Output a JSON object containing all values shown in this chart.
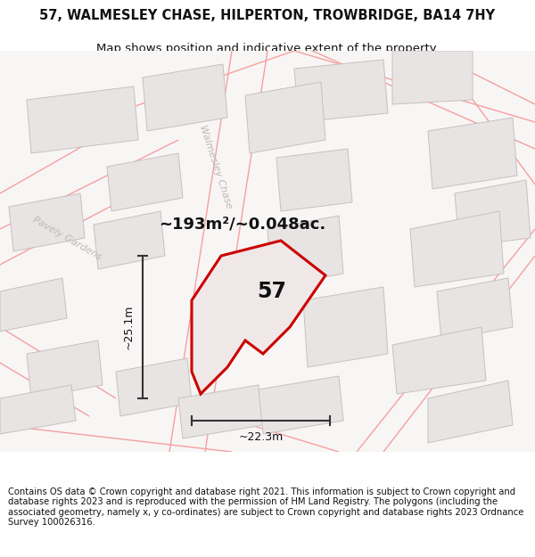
{
  "title_line1": "57, WALMESLEY CHASE, HILPERTON, TROWBRIDGE, BA14 7HY",
  "title_line2": "Map shows position and indicative extent of the property.",
  "footer_text": "Contains OS data © Crown copyright and database right 2021. This information is subject to Crown copyright and database rights 2023 and is reproduced with the permission of HM Land Registry. The polygons (including the associated geometry, namely x, y co-ordinates) are subject to Crown copyright and database rights 2023 Ordnance Survey 100026316.",
  "area_label": "~193m²/~0.048ac.",
  "width_label": "~22.3m",
  "height_label": "~25.1m",
  "number_label": "57",
  "map_bg": "#f7f4f4",
  "building_color": "#e8e4e4",
  "building_edge": "#c8c0c0",
  "road_line_color": "#f5a0a0",
  "highlight_color": "#cc0000",
  "highlight_fill": "#f0e8e8",
  "dim_line_color": "#333333",
  "street_label1": "Walmesley Chase",
  "street_label2": "Pavely Gardens",
  "title_fontsize": 10.5,
  "subtitle_fontsize": 9.5,
  "footer_fontsize": 7.2,
  "area_fontsize": 13,
  "number_fontsize": 17,
  "dim_fontsize": 9
}
